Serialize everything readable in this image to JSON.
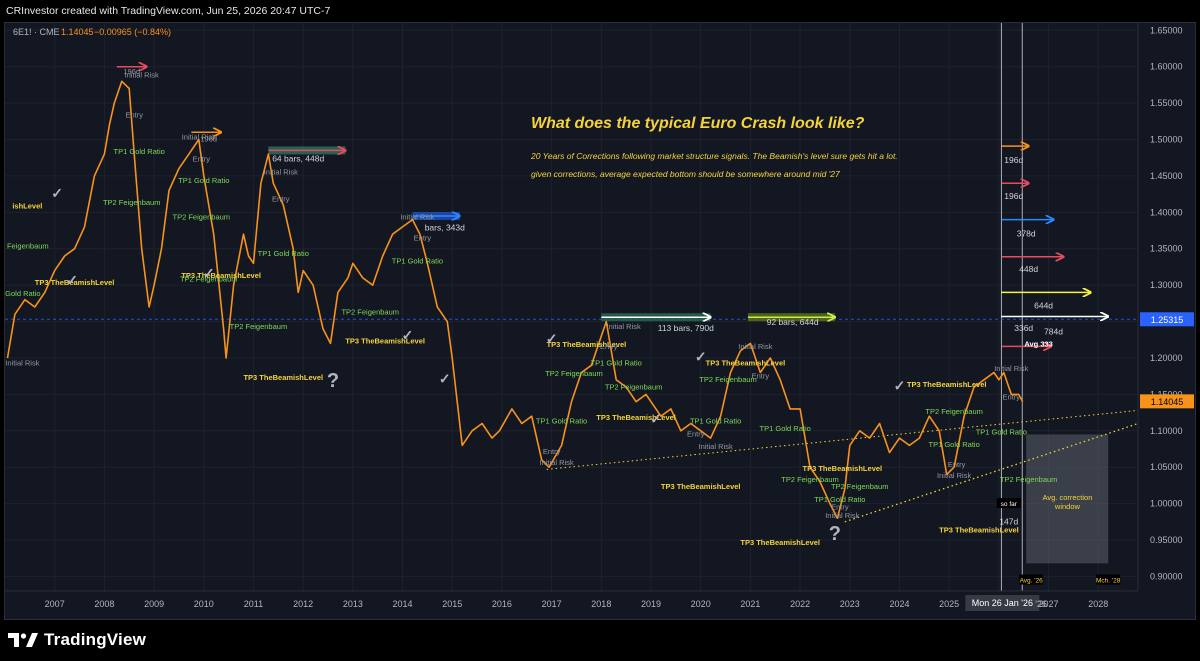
{
  "header": {
    "caption": "CRInvestor created with TradingView.com, Jun 25, 2026 20:47 UTC-7"
  },
  "footer": {
    "brand": "TradingView"
  },
  "symbol": {
    "name": "6E1! · CME",
    "price": "1.14045",
    "change": "−0.00965 (−0.84%)"
  },
  "title": "What does the typical Euro Crash look like?",
  "subtitle_lines": [
    "20 Years of Corrections following market structure signals. The Beamish's level sure gets hit a lot.",
    "given corrections, average expected bottom should be somewhere around mid '27"
  ],
  "colors": {
    "price": "#f7931a",
    "background": "#131722",
    "grid": "#1e222d",
    "gold": "#f5d33b",
    "green_label": "#7ed957",
    "title": "#f5d33b",
    "axis_text": "#b2b5be",
    "price_tag": "#f7931a",
    "ref_tag": "#2962ff"
  },
  "chart_data": {
    "type": "line",
    "series": [
      {
        "x": [
          2006.05,
          2006.2,
          2006.4,
          2006.6,
          2006.8,
          2007.0,
          2007.2,
          2007.4,
          2007.6,
          2007.8,
          2008.0,
          2008.1,
          2008.2,
          2008.35,
          2008.5,
          2008.6,
          2008.75,
          2008.9,
          2009.0,
          2009.15,
          2009.3,
          2009.5,
          2009.7,
          2009.9,
          2010.0,
          2010.2,
          2010.4,
          2010.45,
          2010.6,
          2010.8,
          2010.9,
          2011.0,
          2011.15,
          2011.3,
          2011.4,
          2011.6,
          2011.8,
          2011.9,
          2012.0,
          2012.2,
          2012.4,
          2012.55,
          2012.7,
          2012.9,
          2013.0,
          2013.2,
          2013.4,
          2013.6,
          2013.8,
          2014.0,
          2014.2,
          2014.35,
          2014.5,
          2014.7,
          2014.9,
          2015.0,
          2015.1,
          2015.2,
          2015.4,
          2015.6,
          2015.8,
          2015.95,
          2016.2,
          2016.4,
          2016.6,
          2016.8,
          2016.95,
          2017.2,
          2017.4,
          2017.6,
          2017.8,
          2018.0,
          2018.1,
          2018.3,
          2018.5,
          2018.7,
          2018.9,
          2019.0,
          2019.2,
          2019.4,
          2019.6,
          2019.8,
          2020.0,
          2020.2,
          2020.4,
          2020.6,
          2020.8,
          2021.0,
          2021.2,
          2021.4,
          2021.6,
          2021.8,
          2022.0,
          2022.2,
          2022.4,
          2022.6,
          2022.75,
          2022.9,
          2023.0,
          2023.2,
          2023.4,
          2023.6,
          2023.8,
          2024.0,
          2024.2,
          2024.4,
          2024.6,
          2024.8,
          2024.95,
          2025.1,
          2025.3,
          2025.5,
          2025.7,
          2025.9,
          2026.0,
          2026.1,
          2026.25,
          2026.4,
          2026.48
        ],
        "y": [
          1.2,
          1.26,
          1.28,
          1.27,
          1.29,
          1.32,
          1.34,
          1.35,
          1.38,
          1.45,
          1.48,
          1.52,
          1.55,
          1.58,
          1.57,
          1.48,
          1.35,
          1.27,
          1.3,
          1.35,
          1.43,
          1.46,
          1.48,
          1.5,
          1.45,
          1.37,
          1.24,
          1.2,
          1.3,
          1.37,
          1.34,
          1.33,
          1.44,
          1.48,
          1.44,
          1.41,
          1.35,
          1.29,
          1.32,
          1.3,
          1.24,
          1.22,
          1.29,
          1.31,
          1.33,
          1.31,
          1.3,
          1.34,
          1.37,
          1.38,
          1.39,
          1.37,
          1.33,
          1.27,
          1.25,
          1.2,
          1.14,
          1.08,
          1.1,
          1.11,
          1.09,
          1.1,
          1.13,
          1.11,
          1.12,
          1.06,
          1.05,
          1.08,
          1.14,
          1.18,
          1.19,
          1.23,
          1.25,
          1.17,
          1.16,
          1.14,
          1.15,
          1.14,
          1.12,
          1.13,
          1.1,
          1.11,
          1.1,
          1.09,
          1.12,
          1.18,
          1.21,
          1.22,
          1.18,
          1.2,
          1.17,
          1.13,
          1.13,
          1.05,
          1.03,
          1.0,
          0.98,
          1.02,
          1.08,
          1.1,
          1.09,
          1.11,
          1.07,
          1.09,
          1.08,
          1.09,
          1.12,
          1.1,
          1.04,
          1.05,
          1.12,
          1.16,
          1.17,
          1.18,
          1.17,
          1.18,
          1.15,
          1.15,
          1.14
        ]
      }
    ],
    "y_ticks": [
      "1.65000",
      "1.60000",
      "1.55000",
      "1.50000",
      "1.45000",
      "1.40000",
      "1.35000",
      "1.30000",
      "1.25000",
      "1.20000",
      "1.15000",
      "1.10000",
      "1.05000",
      "1.00000",
      "0.95000",
      "0.90000"
    ],
    "x_ticks": [
      "2007",
      "2008",
      "2009",
      "2010",
      "2011",
      "2012",
      "2013",
      "2014",
      "2015",
      "2016",
      "2017",
      "2018",
      "2019",
      "2020",
      "2021",
      "2022",
      "2023",
      "2024",
      "2025",
      "2026",
      "2027",
      "2028"
    ],
    "price_labels": [
      {
        "text": "1.25315",
        "y": 1.25315,
        "color": "#2962ff"
      },
      {
        "text": "1.14045",
        "y": 1.14045,
        "color": "#f7931a"
      }
    ],
    "cursor_label": "Mon 26 Jan '26",
    "y_range": [
      0.88,
      1.66
    ],
    "x_range": [
      2006.0,
      2028.8
    ]
  },
  "annotations": [
    {
      "type": "gold",
      "text": "TP3 TheBeamishLevel",
      "x": 2007.4,
      "y": 1.3
    },
    {
      "type": "gold",
      "text": "TP3 TheBeamishLevel",
      "x": 2010.35,
      "y": 1.31
    },
    {
      "type": "gold",
      "text": "TP3 TheBeamishLevel",
      "x": 2013.65,
      "y": 1.22
    },
    {
      "type": "gold",
      "text": "TP3 TheBeamishLevel",
      "x": 2011.6,
      "y": 1.17
    },
    {
      "type": "gold",
      "text": "TP3 TheBeamishLevel",
      "x": 2017.7,
      "y": 1.215
    },
    {
      "type": "gold",
      "text": "TP3 TheBeamishLevel",
      "x": 2018.7,
      "y": 1.115
    },
    {
      "type": "gold",
      "text": "TP3 TheBeamishLevel",
      "x": 2020.9,
      "y": 1.19
    },
    {
      "type": "gold",
      "text": "TP3 TheBeamishLevel",
      "x": 2022.85,
      "y": 1.045
    },
    {
      "type": "gold",
      "text": "TP3 TheBeamishLevel",
      "x": 2024.95,
      "y": 1.16
    },
    {
      "type": "gold",
      "text": "TP3 TheBeamishLevel",
      "x": 2020.0,
      "y": 1.02
    },
    {
      "type": "gold",
      "text": "TP3 TheBeamishLevel",
      "x": 2021.6,
      "y": 0.943
    },
    {
      "type": "gold",
      "text": "TP3 TheBeamishLevel",
      "x": 2025.6,
      "y": 0.96
    },
    {
      "type": "gold",
      "text": "ishLevel",
      "x": 2006.45,
      "y": 1.405
    },
    {
      "type": "green",
      "text": "TP1 Gold Ratio",
      "x": 2008.7,
      "y": 1.48
    },
    {
      "type": "green",
      "text": "TP1 Gold Ratio",
      "x": 2010.0,
      "y": 1.44
    },
    {
      "type": "green",
      "text": "TP1 Gold Ratio",
      "x": 2011.6,
      "y": 1.34
    },
    {
      "type": "green",
      "text": "TP1 Gold Ratio",
      "x": 2014.3,
      "y": 1.33
    },
    {
      "type": "green",
      "text": "TP1 Gold Ratio",
      "x": 2017.2,
      "y": 1.11
    },
    {
      "type": "green",
      "text": "TP1 Gold Ratio",
      "x": 2018.3,
      "y": 1.19
    },
    {
      "type": "green",
      "text": "TP1 Gold Ratio",
      "x": 2020.3,
      "y": 1.11
    },
    {
      "type": "green",
      "text": "TP1 Gold Ratio",
      "x": 2021.7,
      "y": 1.1
    },
    {
      "type": "green",
      "text": "TP1 Gold Ratio",
      "x": 2022.8,
      "y": 1.002
    },
    {
      "type": "green",
      "text": "TP1 Gold Ratio",
      "x": 2025.1,
      "y": 1.078
    },
    {
      "type": "green",
      "text": "TP1 Gold Ratio",
      "x": 2026.05,
      "y": 1.095
    },
    {
      "type": "green",
      "text": "TP2 Feigenbaum",
      "x": 2008.55,
      "y": 1.41
    },
    {
      "type": "green",
      "text": "TP2 Feigenbaum",
      "x": 2009.95,
      "y": 1.39
    },
    {
      "type": "green",
      "text": "TP2 Feigenbaum",
      "x": 2010.1,
      "y": 1.305
    },
    {
      "type": "green",
      "text": "TP2 Feigenbaum",
      "x": 2011.1,
      "y": 1.24
    },
    {
      "type": "green",
      "text": "TP2 Feigenbaum",
      "x": 2013.35,
      "y": 1.26
    },
    {
      "type": "green",
      "text": "TP2 Feigenbaum",
      "x": 2017.45,
      "y": 1.175
    },
    {
      "type": "green",
      "text": "TP2 Feigenbaum",
      "x": 2018.65,
      "y": 1.157
    },
    {
      "type": "green",
      "text": "TP2 Feigenbaum",
      "x": 2020.55,
      "y": 1.167
    },
    {
      "type": "green",
      "text": "TP2 Feigenbaum",
      "x": 2022.2,
      "y": 1.03
    },
    {
      "type": "green",
      "text": "TP2 Feigenbaum",
      "x": 2023.2,
      "y": 1.02
    },
    {
      "type": "green",
      "text": "TP2 Feigenbaum",
      "x": 2025.1,
      "y": 1.123
    },
    {
      "type": "green",
      "text": "TP2 Feigenbaum",
      "x": 2026.6,
      "y": 1.03
    },
    {
      "type": "green",
      "text": "TP2 Feigenbaum",
      "x": 2006.3,
      "y": 1.35
    },
    {
      "type": "green",
      "text": "TP1 Gold Ratio",
      "x": 2006.2,
      "y": 1.285
    },
    {
      "type": "gray",
      "text": "Initial Risk",
      "x": 2006.35,
      "y": 1.19
    },
    {
      "type": "gray",
      "text": "Initial Risk",
      "x": 2008.75,
      "y": 1.585
    },
    {
      "type": "gray",
      "text": "Entry",
      "x": 2008.6,
      "y": 1.53
    },
    {
      "type": "gray",
      "text": "Initial Risk",
      "x": 2009.9,
      "y": 1.5
    },
    {
      "type": "gray",
      "text": "Entry",
      "x": 2009.95,
      "y": 1.47
    },
    {
      "type": "gray",
      "text": "Initial Risk",
      "x": 2011.55,
      "y": 1.452
    },
    {
      "type": "gray",
      "text": "Entry",
      "x": 2011.55,
      "y": 1.415
    },
    {
      "type": "gray",
      "text": "Initial Risk",
      "x": 2014.3,
      "y": 1.39
    },
    {
      "type": "gray",
      "text": "Entry",
      "x": 2014.4,
      "y": 1.361
    },
    {
      "type": "gray",
      "text": "Initial Risk",
      "x": 2018.45,
      "y": 1.24
    },
    {
      "type": "gray",
      "text": "Entry",
      "x": 2018.15,
      "y": 1.212
    },
    {
      "type": "gray",
      "text": "Initial Risk",
      "x": 2021.1,
      "y": 1.212
    },
    {
      "type": "gray",
      "text": "Entry",
      "x": 2021.2,
      "y": 1.172
    },
    {
      "type": "gray",
      "text": "Entry",
      "x": 2017.0,
      "y": 1.068
    },
    {
      "type": "gray",
      "text": "Initial Risk",
      "x": 2017.1,
      "y": 1.053
    },
    {
      "type": "gray",
      "text": "Entry",
      "x": 2019.9,
      "y": 1.092
    },
    {
      "type": "gray",
      "text": "Initial Risk",
      "x": 2020.3,
      "y": 1.075
    },
    {
      "type": "gray",
      "text": "Entry",
      "x": 2022.8,
      "y": 0.992
    },
    {
      "type": "gray",
      "text": "Initial Risk",
      "x": 2022.85,
      "y": 0.98
    },
    {
      "type": "gray",
      "text": "Entry",
      "x": 2025.15,
      "y": 1.05
    },
    {
      "type": "gray",
      "text": "Initial Risk",
      "x": 2025.1,
      "y": 1.035
    },
    {
      "type": "gray",
      "text": "Initial Risk",
      "x": 2026.25,
      "y": 1.182
    },
    {
      "type": "gray",
      "text": "Entry",
      "x": 2026.25,
      "y": 1.143
    },
    {
      "type": "gray",
      "text": "196d",
      "x": 2008.55,
      "y": 1.59
    },
    {
      "type": "gray",
      "text": "196d",
      "x": 2010.1,
      "y": 1.497
    },
    {
      "type": "measure",
      "text": "64 bars, 448d",
      "x": 2011.9,
      "y": 1.47
    },
    {
      "type": "measure",
      "text": "bars, 343d",
      "x": 2014.85,
      "y": 1.375
    },
    {
      "type": "measure",
      "text": "113 bars, 790d",
      "x": 2019.7,
      "y": 1.237
    },
    {
      "type": "measure",
      "text": "92 bars, 644d",
      "x": 2021.85,
      "y": 1.245
    },
    {
      "type": "measure",
      "text": "196d",
      "x": 2026.3,
      "y": 1.468
    },
    {
      "type": "measure",
      "text": "196d",
      "x": 2026.3,
      "y": 1.418
    },
    {
      "type": "measure",
      "text": "378d",
      "x": 2026.55,
      "y": 1.367
    },
    {
      "type": "measure",
      "text": "448d",
      "x": 2026.6,
      "y": 1.318
    },
    {
      "type": "measure",
      "text": "644d",
      "x": 2026.9,
      "y": 1.268
    },
    {
      "type": "measure",
      "text": "336d",
      "x": 2026.5,
      "y": 1.237
    },
    {
      "type": "measure",
      "text": "784d",
      "x": 2027.1,
      "y": 1.232
    },
    {
      "type": "measure",
      "text": "147d",
      "x": 2026.2,
      "y": 0.971
    },
    {
      "type": "white-bold",
      "text": "Avg 333",
      "x": 2026.8,
      "y": 1.216
    }
  ],
  "tags": [
    {
      "text": "so far",
      "x": 2026.2,
      "y": 0.998
    },
    {
      "text": "Avg. '26",
      "x": 2026.65,
      "y": 0.893
    },
    {
      "text": "Mch. '28",
      "x": 2028.2,
      "y": 0.893
    }
  ],
  "correction_window": {
    "label_lines": [
      "Avg. correction",
      "window"
    ]
  },
  "axis_overlay": {
    "partial_year": "'26"
  }
}
